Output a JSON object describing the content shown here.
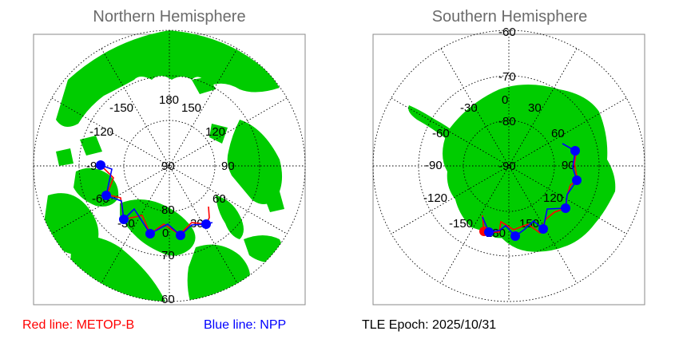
{
  "north": {
    "title": "Northern Hemisphere",
    "longitude_labels": [
      "180",
      "150",
      "120",
      "90",
      "60",
      "30",
      "0",
      "-30",
      "-60",
      "-90",
      "-120",
      "-150"
    ],
    "latitude_labels": [
      "90",
      "80",
      "70",
      "60"
    ]
  },
  "south": {
    "title": "Southern Hemisphere",
    "longitude_labels": [
      "0",
      "30",
      "60",
      "90",
      "120",
      "150",
      "180",
      "-150",
      "-120",
      "-90",
      "-60",
      "-30"
    ],
    "latitude_labels": [
      "-90",
      "-80",
      "-70",
      "-60"
    ]
  },
  "legend": {
    "red_line": "Red line: METOP-B",
    "blue_line": "Blue line: NPP",
    "tle_epoch": "TLE Epoch: 2025/10/31"
  },
  "colors": {
    "land": "#00cc00",
    "metop_b_track": "#ff0000",
    "npp_track": "#0000ff",
    "title": "#6b6b6b"
  }
}
